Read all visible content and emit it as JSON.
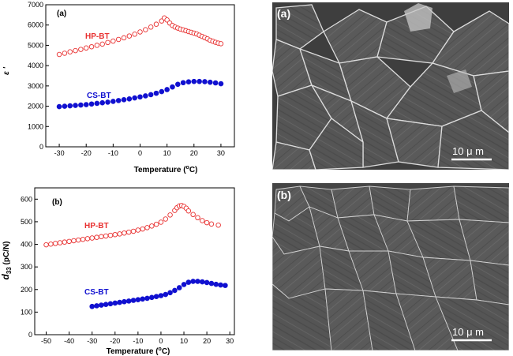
{
  "chart_data": [
    {
      "type": "scatter",
      "panel_label": "(a)",
      "xlabel": "Temperature (",
      "xlabel_sup": "o",
      "xlabel_end": "C)",
      "ylabel": "ε '",
      "xlim": [
        -35,
        35
      ],
      "ylim": [
        0,
        7000
      ],
      "xticks": [
        -30,
        -20,
        -10,
        0,
        10,
        20,
        30
      ],
      "yticks": [
        0,
        1000,
        2000,
        3000,
        4000,
        5000,
        6000,
        7000
      ],
      "series": [
        {
          "name": "HP-BT",
          "color": "#e83030",
          "marker": "open-circle",
          "x": [
            -30,
            -28,
            -26,
            -24,
            -22,
            -20,
            -18,
            -16,
            -14,
            -12,
            -10,
            -8,
            -6,
            -4,
            -2,
            0,
            2,
            4,
            6,
            8,
            9,
            10,
            11,
            12,
            13,
            14,
            15,
            16,
            17,
            18,
            19,
            20,
            21,
            22,
            23,
            24,
            25,
            26,
            27,
            28,
            29,
            30
          ],
          "y": [
            4550,
            4610,
            4680,
            4740,
            4800,
            4870,
            4930,
            5000,
            5060,
            5140,
            5210,
            5290,
            5370,
            5460,
            5550,
            5660,
            5770,
            5900,
            6040,
            6200,
            6350,
            6250,
            6100,
            5980,
            5900,
            5850,
            5800,
            5760,
            5720,
            5680,
            5640,
            5600,
            5560,
            5500,
            5440,
            5380,
            5320,
            5250,
            5200,
            5150,
            5110,
            5080
          ]
        },
        {
          "name": "CS-BT",
          "color": "#1010d0",
          "marker": "filled-circle",
          "x": [
            -30,
            -28,
            -26,
            -24,
            -22,
            -20,
            -18,
            -16,
            -14,
            -12,
            -10,
            -8,
            -6,
            -4,
            -2,
            0,
            2,
            4,
            6,
            8,
            10,
            12,
            14,
            16,
            18,
            20,
            22,
            24,
            26,
            28,
            30
          ],
          "y": [
            1980,
            2000,
            2020,
            2040,
            2060,
            2080,
            2110,
            2140,
            2170,
            2200,
            2240,
            2280,
            2320,
            2360,
            2410,
            2460,
            2510,
            2570,
            2640,
            2720,
            2820,
            2950,
            3080,
            3160,
            3200,
            3220,
            3220,
            3210,
            3180,
            3150,
            3110
          ]
        }
      ]
    },
    {
      "type": "scatter",
      "panel_label": "(b)",
      "xlabel": "Temperature (",
      "xlabel_sup": "o",
      "xlabel_end": "C)",
      "ylabel": "d",
      "ylabel_sub": "33",
      "ylabel_unit": " (pC/N)",
      "xlim": [
        -55,
        32
      ],
      "ylim": [
        0,
        650
      ],
      "xticks": [
        -50,
        -40,
        -30,
        -20,
        -10,
        0,
        10,
        20,
        30
      ],
      "yticks": [
        0,
        100,
        200,
        300,
        400,
        500,
        600
      ],
      "series": [
        {
          "name": "HP-BT",
          "color": "#e83030",
          "marker": "open-circle",
          "x": [
            -50,
            -48,
            -46,
            -44,
            -42,
            -40,
            -38,
            -36,
            -34,
            -32,
            -30,
            -28,
            -26,
            -24,
            -22,
            -20,
            -18,
            -16,
            -14,
            -12,
            -10,
            -8,
            -6,
            -4,
            -2,
            0,
            2,
            4,
            6,
            7,
            8,
            9,
            10,
            11,
            12,
            14,
            16,
            18,
            20,
            22,
            25
          ],
          "y": [
            398,
            401,
            404,
            407,
            410,
            413,
            416,
            419,
            422,
            425,
            428,
            431,
            434,
            437,
            440,
            443,
            446,
            450,
            454,
            458,
            463,
            468,
            474,
            481,
            489,
            498,
            512,
            530,
            550,
            562,
            570,
            572,
            568,
            560,
            548,
            532,
            518,
            505,
            496,
            490,
            485
          ]
        },
        {
          "name": "CS-BT",
          "color": "#1010d0",
          "marker": "filled-circle",
          "x": [
            -30,
            -28,
            -26,
            -24,
            -22,
            -20,
            -18,
            -16,
            -14,
            -12,
            -10,
            -8,
            -6,
            -4,
            -2,
            0,
            2,
            4,
            6,
            8,
            10,
            12,
            14,
            16,
            18,
            20,
            22,
            24,
            26,
            28
          ],
          "y": [
            125,
            128,
            131,
            134,
            137,
            140,
            143,
            146,
            149,
            152,
            155,
            158,
            161,
            165,
            169,
            173,
            178,
            186,
            196,
            208,
            222,
            232,
            236,
            236,
            234,
            231,
            227,
            223,
            220,
            218
          ]
        }
      ]
    }
  ],
  "images": [
    {
      "panel_label": "(a)",
      "scale_bar": "10  μ m"
    },
    {
      "panel_label": "(b)",
      "scale_bar": "10  μ m"
    }
  ]
}
